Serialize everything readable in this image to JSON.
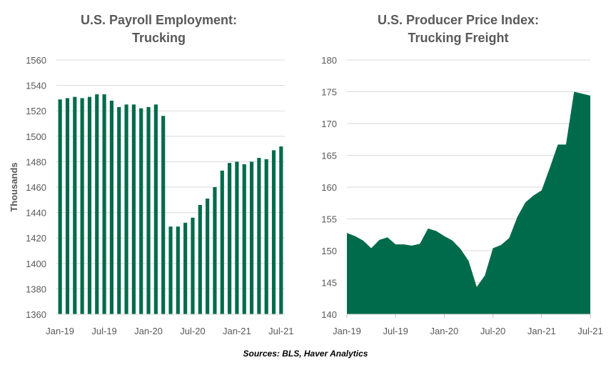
{
  "charts": [
    {
      "type": "bar",
      "title_line1": "U.S. Payroll Employment:",
      "title_line2": "Trucking",
      "ylabel": "Thousands",
      "ylim": [
        1360,
        1560
      ],
      "yticks": [
        1360,
        1380,
        1400,
        1420,
        1440,
        1460,
        1480,
        1500,
        1520,
        1540,
        1560
      ],
      "categories": [
        "Jan-19",
        "Feb-19",
        "Mar-19",
        "Apr-19",
        "May-19",
        "Jun-19",
        "Jul-19",
        "Aug-19",
        "Sep-19",
        "Oct-19",
        "Nov-19",
        "Dec-19",
        "Jan-20",
        "Feb-20",
        "Mar-20",
        "Apr-20",
        "May-20",
        "Jun-20",
        "Jul-20",
        "Aug-20",
        "Sep-20",
        "Oct-20",
        "Nov-20",
        "Dec-20",
        "Jan-21",
        "Feb-21",
        "Mar-21",
        "Apr-21",
        "May-21",
        "Jun-21",
        "Jul-21"
      ],
      "xtick_labels": [
        "Jan-19",
        "Jul-19",
        "Jan-20",
        "Jul-20",
        "Jan-21",
        "Jul-21"
      ],
      "values": [
        1529,
        1530,
        1531,
        1530,
        1531,
        1533,
        1533,
        1528,
        1523,
        1525,
        1525,
        1522,
        1523,
        1525,
        1516,
        1429,
        1429,
        1432,
        1436,
        1446,
        1451,
        1460,
        1473,
        1479,
        1480,
        1478,
        1480,
        1483,
        1482,
        1489,
        1492
      ],
      "color": "#006b4a",
      "grid": true
    },
    {
      "type": "area",
      "title_line1": "U.S. Producer Price Index:",
      "title_line2": "Trucking Freight",
      "ylim": [
        140,
        180
      ],
      "yticks": [
        140,
        145,
        150,
        155,
        160,
        165,
        170,
        175,
        180
      ],
      "categories": [
        "Jan-19",
        "Feb-19",
        "Mar-19",
        "Apr-19",
        "May-19",
        "Jun-19",
        "Jul-19",
        "Aug-19",
        "Sep-19",
        "Oct-19",
        "Nov-19",
        "Dec-19",
        "Jan-20",
        "Feb-20",
        "Mar-20",
        "Apr-20",
        "May-20",
        "Jun-20",
        "Jul-20",
        "Aug-20",
        "Sep-20",
        "Oct-20",
        "Nov-20",
        "Dec-20",
        "Jan-21",
        "Feb-21",
        "Mar-21",
        "Apr-21",
        "May-21",
        "Jun-21",
        "Jul-21"
      ],
      "xtick_labels": [
        "Jan-19",
        "Jul-19",
        "Jan-20",
        "Jul-20",
        "Jan-21",
        "Jul-21"
      ],
      "values": [
        152.8,
        152.3,
        151.6,
        150.4,
        151.7,
        152.1,
        151.0,
        151.0,
        150.8,
        151.1,
        153.5,
        153.1,
        152.3,
        151.6,
        150.3,
        148.4,
        144.3,
        146.1,
        150.4,
        150.9,
        152.0,
        155.3,
        157.6,
        158.7,
        159.5,
        163.0,
        166.7,
        166.7,
        175.0,
        174.7,
        174.4
      ],
      "color": "#006b4a",
      "grid": true
    }
  ],
  "source": "Sources: BLS, Haver Analytics",
  "chart_data": [
    {
      "type": "bar",
      "title": "U.S. Payroll Employment: Trucking",
      "ylabel": "Thousands",
      "ylim": [
        1360,
        1560
      ],
      "categories": [
        "Jan-19",
        "Feb-19",
        "Mar-19",
        "Apr-19",
        "May-19",
        "Jun-19",
        "Jul-19",
        "Aug-19",
        "Sep-19",
        "Oct-19",
        "Nov-19",
        "Dec-19",
        "Jan-20",
        "Feb-20",
        "Mar-20",
        "Apr-20",
        "May-20",
        "Jun-20",
        "Jul-20",
        "Aug-20",
        "Sep-20",
        "Oct-20",
        "Nov-20",
        "Dec-20",
        "Jan-21",
        "Feb-21",
        "Mar-21",
        "Apr-21",
        "May-21",
        "Jun-21",
        "Jul-21"
      ],
      "values": [
        1529,
        1530,
        1531,
        1530,
        1531,
        1533,
        1533,
        1528,
        1523,
        1525,
        1525,
        1522,
        1523,
        1525,
        1516,
        1429,
        1429,
        1432,
        1436,
        1446,
        1451,
        1460,
        1473,
        1479,
        1480,
        1478,
        1480,
        1483,
        1482,
        1489,
        1492
      ]
    },
    {
      "type": "area",
      "title": "U.S. Producer Price Index: Trucking Freight",
      "ylim": [
        140,
        180
      ],
      "categories": [
        "Jan-19",
        "Feb-19",
        "Mar-19",
        "Apr-19",
        "May-19",
        "Jun-19",
        "Jul-19",
        "Aug-19",
        "Sep-19",
        "Oct-19",
        "Nov-19",
        "Dec-19",
        "Jan-20",
        "Feb-20",
        "Mar-20",
        "Apr-20",
        "May-20",
        "Jun-20",
        "Jul-20",
        "Aug-20",
        "Sep-20",
        "Oct-20",
        "Nov-20",
        "Dec-20",
        "Jan-21",
        "Feb-21",
        "Mar-21",
        "Apr-21",
        "May-21",
        "Jun-21",
        "Jul-21"
      ],
      "values": [
        152.8,
        152.3,
        151.6,
        150.4,
        151.7,
        152.1,
        151.0,
        151.0,
        150.8,
        151.1,
        153.5,
        153.1,
        152.3,
        151.6,
        150.3,
        148.4,
        144.3,
        146.1,
        150.4,
        150.9,
        152.0,
        155.3,
        157.6,
        158.7,
        159.5,
        163.0,
        166.7,
        166.7,
        175.0,
        174.7,
        174.4
      ]
    }
  ]
}
